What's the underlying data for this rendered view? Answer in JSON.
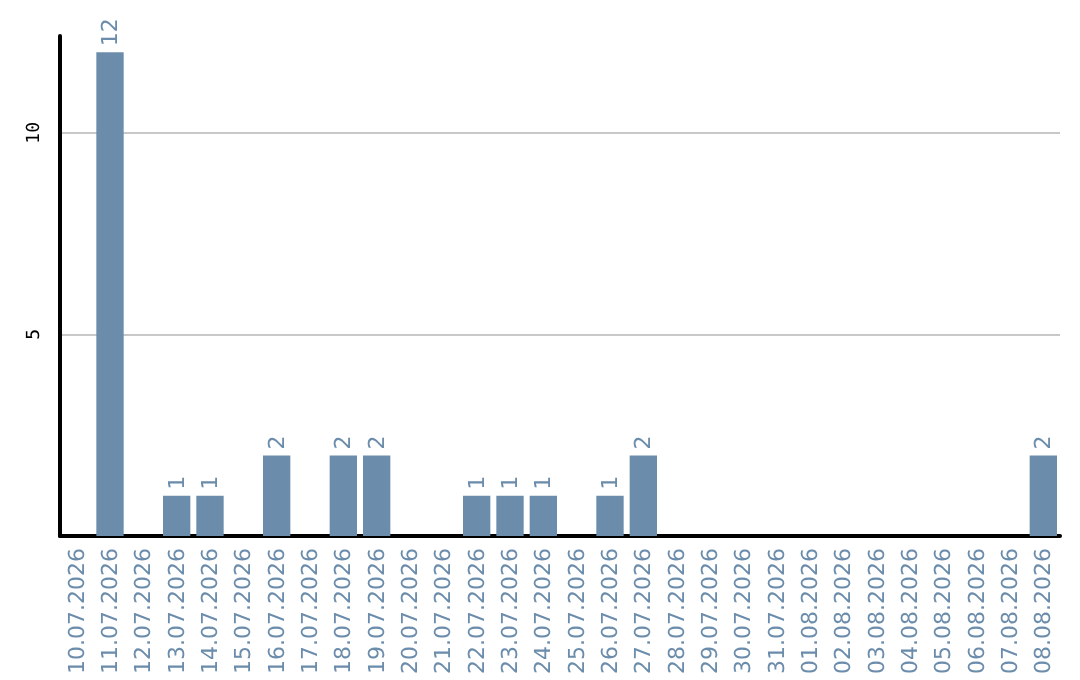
{
  "chart_data": {
    "type": "bar",
    "categories": [
      "10.07.2026",
      "11.07.2026",
      "12.07.2026",
      "13.07.2026",
      "14.07.2026",
      "15.07.2026",
      "16.07.2026",
      "17.07.2026",
      "18.07.2026",
      "19.07.2026",
      "20.07.2026",
      "21.07.2026",
      "22.07.2026",
      "23.07.2026",
      "24.07.2026",
      "25.07.2026",
      "26.07.2026",
      "27.07.2026",
      "28.07.2026",
      "29.07.2026",
      "30.07.2026",
      "31.07.2026",
      "01.08.2026",
      "02.08.2026",
      "03.08.2026",
      "04.08.2026",
      "05.08.2026",
      "06.08.2026",
      "07.08.2026",
      "08.08.2026"
    ],
    "values": [
      0,
      12,
      0,
      1,
      1,
      0,
      2,
      0,
      2,
      2,
      0,
      0,
      1,
      1,
      1,
      0,
      1,
      2,
      0,
      0,
      0,
      0,
      0,
      0,
      0,
      0,
      0,
      0,
      0,
      2
    ],
    "value_labels": [
      null,
      "12",
      null,
      "1",
      "1",
      null,
      "2",
      null,
      "2",
      "2",
      null,
      null,
      "1",
      "1",
      "1",
      null,
      "1",
      "2",
      null,
      null,
      null,
      null,
      null,
      null,
      null,
      null,
      null,
      null,
      null,
      "2"
    ],
    "color": "#6b8cab",
    "ylim": [
      0,
      12.4
    ],
    "yticks": [
      {
        "value": 0,
        "label": null
      },
      5,
      10
    ],
    "grid": "y"
  }
}
